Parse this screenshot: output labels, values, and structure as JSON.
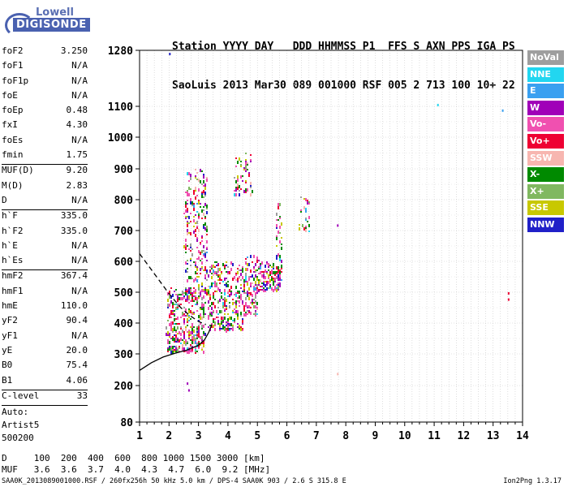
{
  "logo": {
    "top": "Lowell",
    "bottom": "DIGISONDE"
  },
  "header": {
    "line1": "Station YYYY DAY   DDD HHMMSS P1  FFS S AXN PPS IGA PS",
    "line2": "SaoLuis 2013 Mar30 089 001000 RSF 005 2 713 100 10+ 22"
  },
  "params_group1": [
    {
      "k": "foF2",
      "v": "3.250"
    },
    {
      "k": "foF1",
      "v": "N/A"
    },
    {
      "k": "foF1p",
      "v": "N/A"
    },
    {
      "k": "foE",
      "v": "N/A"
    },
    {
      "k": "foEp",
      "v": "0.48"
    },
    {
      "k": "fxI",
      "v": "4.30"
    },
    {
      "k": "foEs",
      "v": "N/A"
    },
    {
      "k": "fmin",
      "v": "1.75"
    }
  ],
  "params_group2": [
    {
      "k": "MUF(D)",
      "v": "9.20"
    },
    {
      "k": "M(D)",
      "v": "2.83"
    },
    {
      "k": "D",
      "v": "N/A"
    }
  ],
  "params_group3": [
    {
      "k": "h`F",
      "v": "335.0"
    },
    {
      "k": "h`F2",
      "v": "335.0"
    },
    {
      "k": "h`E",
      "v": "N/A"
    },
    {
      "k": "h`Es",
      "v": "N/A"
    }
  ],
  "params_group4": [
    {
      "k": "hmF2",
      "v": "367.4"
    },
    {
      "k": "hmF1",
      "v": "N/A"
    },
    {
      "k": "hmE",
      "v": "110.0"
    },
    {
      "k": "yF2",
      "v": "90.4"
    },
    {
      "k": "yF1",
      "v": "N/A"
    },
    {
      "k": "yE",
      "v": "20.0"
    },
    {
      "k": "B0",
      "v": "75.4"
    },
    {
      "k": "B1",
      "v": "4.06"
    }
  ],
  "clevel": {
    "k": "C-level",
    "v": "33"
  },
  "auto": [
    "Auto:",
    "Artist5",
    "500200"
  ],
  "legend": [
    {
      "label": "NoVal",
      "color": "#9e9e9e"
    },
    {
      "label": "NNE",
      "color": "#22d6f0"
    },
    {
      "label": "E",
      "color": "#3aa0f0"
    },
    {
      "label": "W",
      "color": "#a000b8"
    },
    {
      "label": "Vo-",
      "color": "#f050b0"
    },
    {
      "label": "Vo+",
      "color": "#ee0033"
    },
    {
      "label": "SSW",
      "color": "#f7b6b0"
    },
    {
      "label": "X-",
      "color": "#008a00"
    },
    {
      "label": "X+",
      "color": "#80b860"
    },
    {
      "label": "SSE",
      "color": "#c8c800"
    },
    {
      "label": "NNW",
      "color": "#2020c8"
    }
  ],
  "footer": {
    "d_line": "D     100  200  400  600  800 1000 1500 3000 [km]",
    "muf_line": "MUF   3.6  3.6  3.7  4.0  4.3  4.7  6.0  9.2 [MHz]",
    "file_line": "SAA0K_2013089001000.RSF / 260fx256h 50 kHz 5.0 km / DPS-4 SAA0K 903 / 2.6 S 315.8 E",
    "version": "Ion2Png 1.3.17"
  },
  "chart_data": {
    "type": "scatter",
    "x_ticks": [
      "1",
      "2",
      "3",
      "4",
      "5",
      "6",
      "7",
      "8",
      "9",
      "10",
      "11",
      "12",
      "13",
      "14"
    ],
    "y_ticks": [
      "80",
      "200",
      "300",
      "400",
      "500",
      "600",
      "700",
      "800",
      "900",
      "1000",
      "1100",
      "1280"
    ],
    "xlim": [
      1,
      14
    ],
    "ylim": [
      80,
      1280
    ],
    "clusters": [
      {
        "x": [
          1.9,
          3.2
        ],
        "y": [
          310,
          520
        ],
        "n": 380
      },
      {
        "x": [
          2.5,
          3.3
        ],
        "y": [
          480,
          900
        ],
        "n": 260
      },
      {
        "x": [
          3.3,
          4.5
        ],
        "y": [
          380,
          600
        ],
        "n": 300
      },
      {
        "x": [
          4.2,
          4.8
        ],
        "y": [
          820,
          960
        ],
        "n": 60
      },
      {
        "x": [
          4.5,
          5.0
        ],
        "y": [
          430,
          620
        ],
        "n": 120
      },
      {
        "x": [
          5.0,
          5.8
        ],
        "y": [
          510,
          600
        ],
        "n": 140
      },
      {
        "x": [
          5.6,
          5.8
        ],
        "y": [
          600,
          800
        ],
        "n": 30
      },
      {
        "x": [
          6.4,
          6.8
        ],
        "y": [
          700,
          820
        ],
        "n": 30
      }
    ],
    "isolated_points": [
      {
        "x": 2.0,
        "y": 1272,
        "c": "#2020c8"
      },
      {
        "x": 7.7,
        "y": 720,
        "c": "#a000b8"
      },
      {
        "x": 11.1,
        "y": 1108,
        "c": "#22d6f0"
      },
      {
        "x": 13.3,
        "y": 1090,
        "c": "#3aa0f0"
      },
      {
        "x": 13.5,
        "y": 500,
        "c": "#ee0033"
      },
      {
        "x": 13.5,
        "y": 480,
        "c": "#ee0033"
      },
      {
        "x": 7.7,
        "y": 240,
        "c": "#f7b6b0"
      },
      {
        "x": 2.6,
        "y": 210,
        "c": "#a000b8"
      },
      {
        "x": 2.65,
        "y": 188,
        "c": "#a000b8"
      }
    ],
    "profile_solid": [
      [
        1,
        248
      ],
      [
        1.4,
        272
      ],
      [
        1.8,
        290
      ],
      [
        2.2,
        302
      ],
      [
        2.6,
        312
      ],
      [
        3.0,
        328
      ],
      [
        3.2,
        345
      ],
      [
        3.35,
        370
      ],
      [
        3.45,
        395
      ]
    ],
    "profile_dashed": [
      [
        1,
        625
      ],
      [
        1.5,
        560
      ],
      [
        2.0,
        495
      ],
      [
        2.4,
        450
      ],
      [
        2.7,
        425
      ],
      [
        3.0,
        405
      ],
      [
        3.25,
        395
      ]
    ]
  }
}
